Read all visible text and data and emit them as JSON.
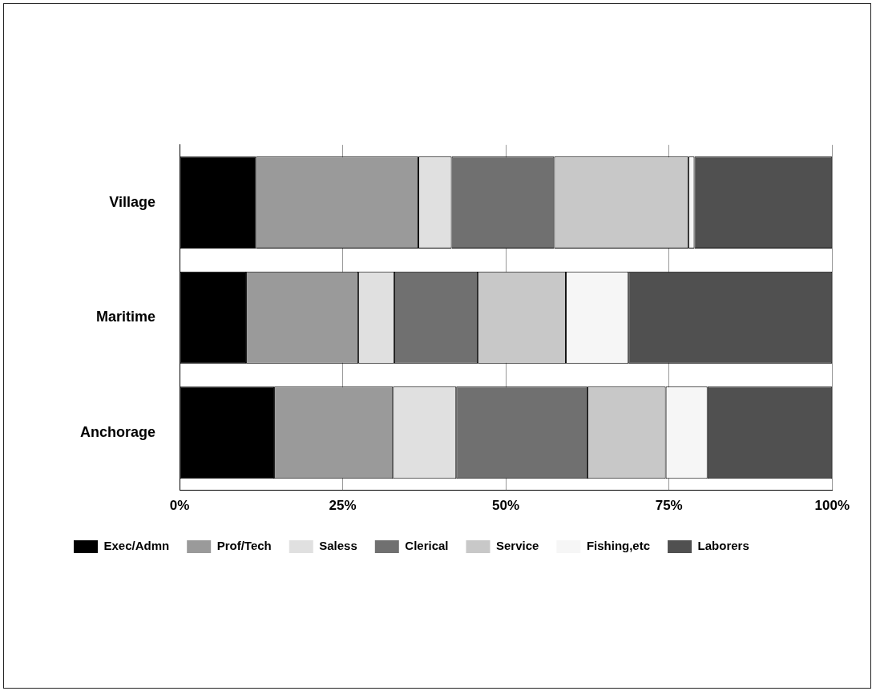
{
  "chart_data": {
    "type": "bar",
    "orientation": "horizontal",
    "stacked": true,
    "categories": [
      "Village",
      "Maritime",
      "Anchorage"
    ],
    "series": [
      {
        "name": "Exec/Admn",
        "color": "#000000",
        "values": [
          11.7,
          10.2,
          14.5
        ]
      },
      {
        "name": "Prof/Tech",
        "color": "#9a9a9a",
        "values": [
          24.9,
          17.2,
          18.2
        ]
      },
      {
        "name": "Saless",
        "color": "#e0e0e0",
        "values": [
          5.1,
          5.5,
          9.7
        ]
      },
      {
        "name": "Clerical",
        "color": "#707070",
        "values": [
          15.7,
          12.8,
          20.1
        ]
      },
      {
        "name": "Service",
        "color": "#c8c8c8",
        "values": [
          20.6,
          13.5,
          12.0
        ]
      },
      {
        "name": "Fishing,etc",
        "color": "#f6f6f6",
        "values": [
          0.9,
          9.6,
          6.4
        ]
      },
      {
        "name": "Laborers",
        "color": "#505050",
        "values": [
          21.1,
          31.2,
          19.1
        ]
      }
    ],
    "xlim": [
      0,
      100
    ],
    "xticks": [
      {
        "value": 0,
        "label": "0%"
      },
      {
        "value": 25,
        "label": "25%"
      },
      {
        "value": 50,
        "label": "50%"
      },
      {
        "value": 75,
        "label": "75%"
      },
      {
        "value": 100,
        "label": "100%"
      }
    ],
    "grid": "x",
    "legend": "bottom"
  }
}
